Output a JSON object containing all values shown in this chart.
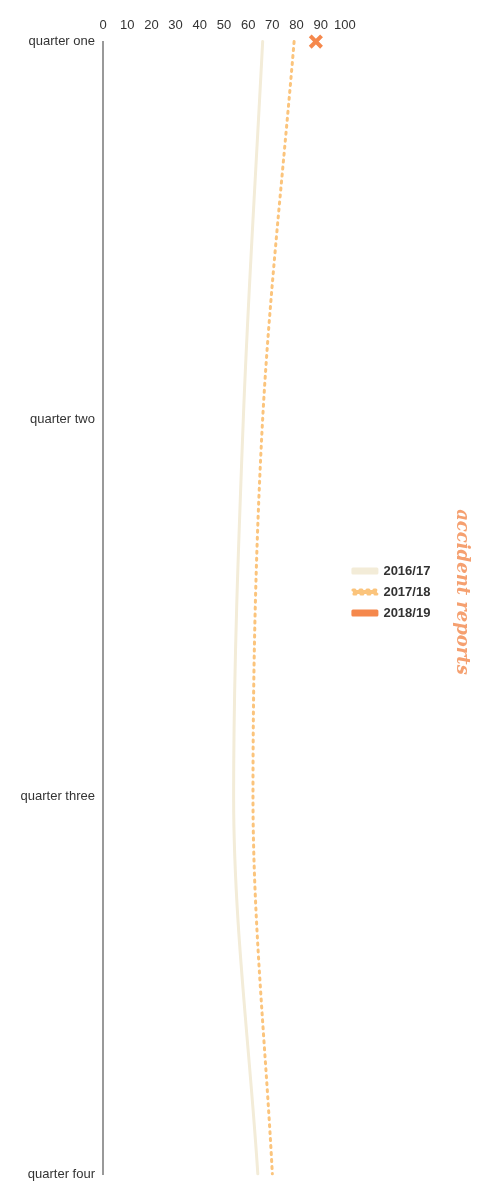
{
  "chart_data": {
    "type": "line",
    "title": "accident reports",
    "orientation": "horizontal",
    "categories": [
      "quarter one",
      "quarter two",
      "quarter three",
      "quarter four"
    ],
    "series": [
      {
        "name": "2016/17",
        "color": "#f3ecd8",
        "values": [
          66,
          58,
          54,
          64
        ],
        "line_style": "solid",
        "marker": "none"
      },
      {
        "name": "2017/18",
        "color": "#fbc47c",
        "values": [
          79,
          66,
          62,
          70
        ],
        "line_style": "dotted",
        "marker": "none"
      },
      {
        "name": "2018/19",
        "color": "#f5884c",
        "values": [
          88,
          null,
          null,
          null
        ],
        "line_style": "solid",
        "marker": "cross"
      }
    ],
    "xlim": [
      0,
      100
    ],
    "xticks": [
      0,
      10,
      20,
      30,
      40,
      50,
      60,
      70,
      80,
      90,
      100
    ],
    "grid": false,
    "legend": "right"
  }
}
